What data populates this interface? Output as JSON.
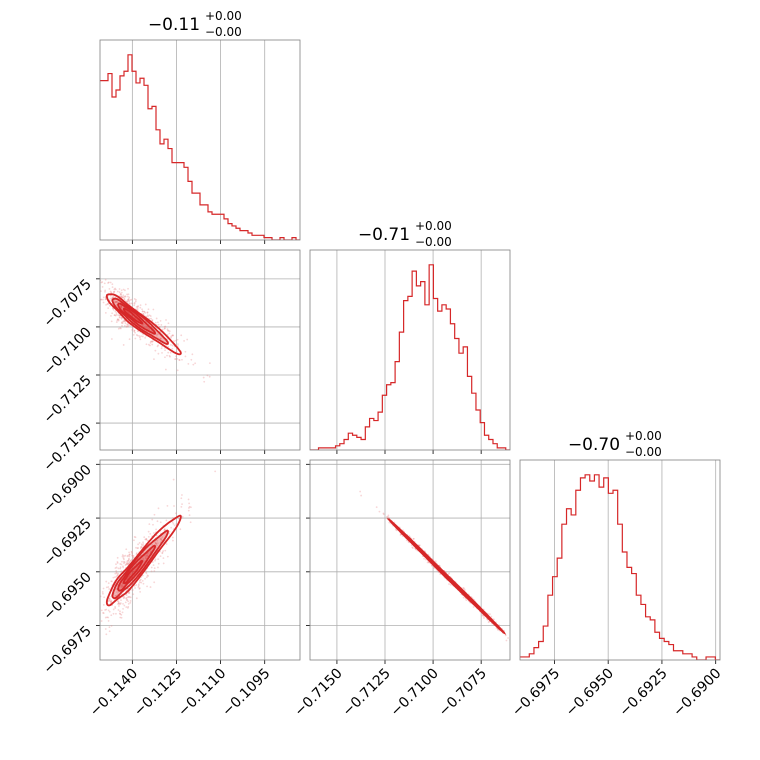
{
  "chart_data": {
    "type": "corner",
    "colors": {
      "main": "#d62728",
      "grid": "#b0b0b0",
      "frame": "#808080"
    },
    "parameters": [
      {
        "median": -0.1141,
        "title": {
          "value": "−0.11",
          "upper": "+0.00",
          "lower": "−0.00"
        },
        "range": [
          -0.1151,
          -0.1083
        ],
        "ticks": [
          -0.114,
          -0.1125,
          -0.111,
          -0.1095
        ],
        "tick_labels": [
          "−0.1140",
          "−0.1125",
          "−0.1110",
          "−0.1095"
        ],
        "hist": [
          68,
          68,
          71,
          61,
          64,
          70,
          72,
          79,
          72,
          67,
          69,
          66,
          56,
          57,
          47,
          41,
          43,
          39,
          33,
          33,
          33,
          31,
          25,
          20,
          20,
          15,
          15,
          12,
          11,
          11,
          11,
          9,
          7,
          6,
          5,
          4,
          4,
          3,
          2,
          2,
          2,
          1,
          1,
          0,
          0,
          1,
          0,
          0,
          1,
          0
        ]
      },
      {
        "median": -0.7093,
        "title": {
          "value": "−0.71",
          "upper": "+0.00",
          "lower": "−0.00"
        },
        "range": [
          -0.7164,
          -0.706
        ],
        "ticks": [
          -0.715,
          -0.7125,
          -0.71,
          -0.7075
        ],
        "tick_labels": [
          "−0.7150",
          "−0.7125",
          "−0.7100",
          "−0.7075"
        ],
        "hist": [
          0,
          0,
          1,
          1,
          1,
          1,
          2,
          3,
          5,
          8,
          7,
          6,
          5,
          11,
          15,
          14,
          18,
          26,
          31,
          32,
          42,
          56,
          71,
          73,
          85,
          78,
          80,
          69,
          88,
          72,
          66,
          69,
          67,
          60,
          53,
          46,
          49,
          35,
          27,
          19,
          13,
          7,
          5,
          3,
          1,
          1,
          0
        ]
      },
      {
        "median": -0.6952,
        "title": {
          "value": "−0.70",
          "upper": "+0.00",
          "lower": "−0.00"
        },
        "range": [
          -0.6991,
          -0.6898
        ],
        "ticks": [
          -0.6975,
          -0.695,
          -0.6925,
          -0.69
        ],
        "tick_labels": [
          "−0.6975",
          "−0.6950",
          "−0.6925",
          "−0.6900"
        ],
        "hist": [
          1,
          1,
          2,
          4,
          6,
          11,
          21,
          27,
          33,
          44,
          49,
          47,
          55,
          59,
          60,
          58,
          60,
          56,
          59,
          54,
          55,
          44,
          35,
          30,
          28,
          21,
          18,
          14,
          13,
          9,
          7,
          6,
          5,
          3,
          3,
          2,
          2,
          1,
          0,
          0,
          1,
          1,
          0
        ]
      }
    ],
    "pairs": [
      {
        "x": 0,
        "y": 1,
        "slope": -1.18,
        "sigma_x": 0.0007,
        "sigma_perp": 0.00022
      },
      {
        "x": 0,
        "y": 2,
        "slope": 1.58,
        "sigma_x": 0.0007,
        "sigma_perp": 0.00028
      },
      {
        "x": 1,
        "y": 2,
        "slope": -0.88,
        "sigma_x": 0.0015,
        "sigma_perp": 4e-05
      }
    ],
    "contour_levels": [
      0.5,
      1.0,
      1.5,
      2.0
    ],
    "grid": true,
    "xlabel": "",
    "ylabel": ""
  }
}
